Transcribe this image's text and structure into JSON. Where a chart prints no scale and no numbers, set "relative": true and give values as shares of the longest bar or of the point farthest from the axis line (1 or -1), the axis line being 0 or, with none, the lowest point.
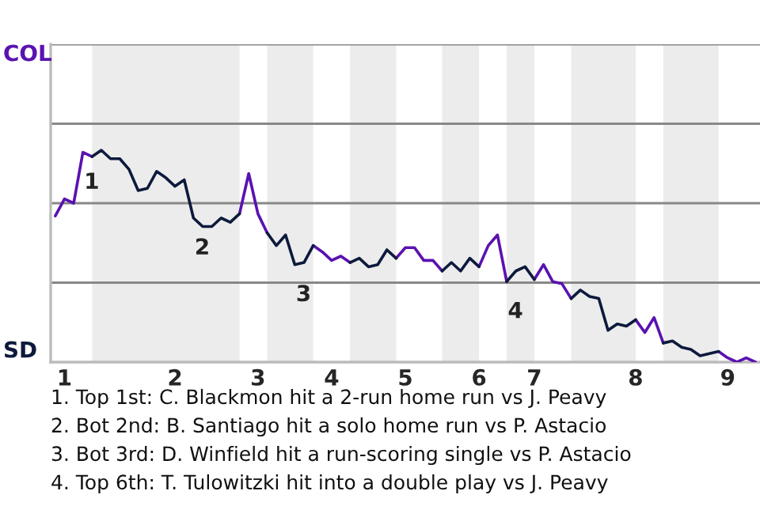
{
  "chart_data": {
    "type": "line",
    "relative": true,
    "categories": [
      null,
      "1",
      null,
      null,
      null,
      null,
      null,
      null,
      null,
      null,
      null,
      null,
      null,
      "2",
      null,
      null,
      null,
      null,
      null,
      null,
      null,
      null,
      "3",
      null,
      null,
      null,
      null,
      null,
      null,
      null,
      "4",
      null,
      null,
      null,
      null,
      null,
      null,
      null,
      "5",
      null,
      null,
      null,
      null,
      null,
      null,
      null,
      "6",
      null,
      null,
      null,
      null,
      null,
      "7",
      null,
      null,
      null,
      null,
      null,
      null,
      null,
      null,
      null,
      null,
      "8",
      null,
      null,
      null,
      null,
      null,
      null,
      null,
      null,
      null,
      "9",
      null,
      null,
      null
    ],
    "series": [
      {
        "name": "COL",
        "color": "#5a12b0",
        "values": [
          0.69,
          0.77,
          0.75,
          0.99,
          0.97,
          null,
          null,
          null,
          null,
          null,
          null,
          null,
          null,
          null,
          null,
          null,
          null,
          null,
          null,
          null,
          0.7,
          0.89,
          0.7,
          0.61,
          null,
          null,
          null,
          null,
          0.55,
          0.52,
          0.48,
          0.5,
          0.47,
          null,
          null,
          null,
          null,
          0.49,
          0.54,
          0.54,
          0.48,
          0.48,
          0.43,
          null,
          null,
          null,
          0.45,
          0.55,
          0.6,
          0.38,
          null,
          null,
          0.39,
          0.46,
          0.38,
          0.37,
          0.3,
          null,
          null,
          null,
          null,
          null,
          null,
          0.2,
          0.14,
          0.21,
          0.09,
          null,
          null,
          null,
          null,
          null,
          0.05,
          0.02,
          0,
          0.02,
          0
        ]
      },
      {
        "name": "SD",
        "color": "#0d1a3c",
        "values": [
          null,
          null,
          null,
          null,
          0.97,
          1,
          0.96,
          0.96,
          0.91,
          0.81,
          0.82,
          0.9,
          0.87,
          0.83,
          0.86,
          0.68,
          0.64,
          0.64,
          0.68,
          0.66,
          0.7,
          null,
          null,
          0.61,
          0.55,
          0.6,
          0.46,
          0.47,
          0.55,
          null,
          null,
          null,
          0.47,
          0.49,
          0.45,
          0.46,
          0.53,
          0.49,
          null,
          null,
          null,
          null,
          0.43,
          0.47,
          0.43,
          0.49,
          0.45,
          null,
          null,
          0.38,
          0.43,
          0.45,
          0.39,
          null,
          null,
          null,
          0.3,
          0.34,
          0.31,
          0.3,
          0.15,
          0.18,
          0.17,
          0.2,
          null,
          null,
          0.09,
          0.1,
          0.07,
          0.06,
          0.03,
          0.04,
          0.05,
          null,
          null,
          null,
          null
        ]
      }
    ],
    "ref_lines": [
      {
        "axis": "y",
        "value": 0.375,
        "color": "#888888"
      },
      {
        "axis": "y",
        "value": 0.75,
        "color": "#888888"
      },
      {
        "axis": "y",
        "value": 1.125,
        "color": "#888888"
      },
      {
        "axis": "y",
        "value": 1.5,
        "color": "#888888"
      }
    ],
    "annotations": [
      {
        "text": "1",
        "y": 0.99
      },
      {
        "text": "2",
        "y": 0.68
      },
      {
        "text": "3",
        "y": 0.46
      },
      {
        "text": "4",
        "y": 0.38
      },
      "1. Top 1st: C. Blackmon hit a 2-run home run vs J. Peavy",
      "2. Bot 2nd: B. Santiago hit a solo home run vs P. Astacio",
      "3. Bot 3rd: D. Winfield hit a run-scoring single vs P. Astacio",
      "4. Top 6th: T. Tulowitzki hit into a double play vs J. Peavy"
    ]
  }
}
